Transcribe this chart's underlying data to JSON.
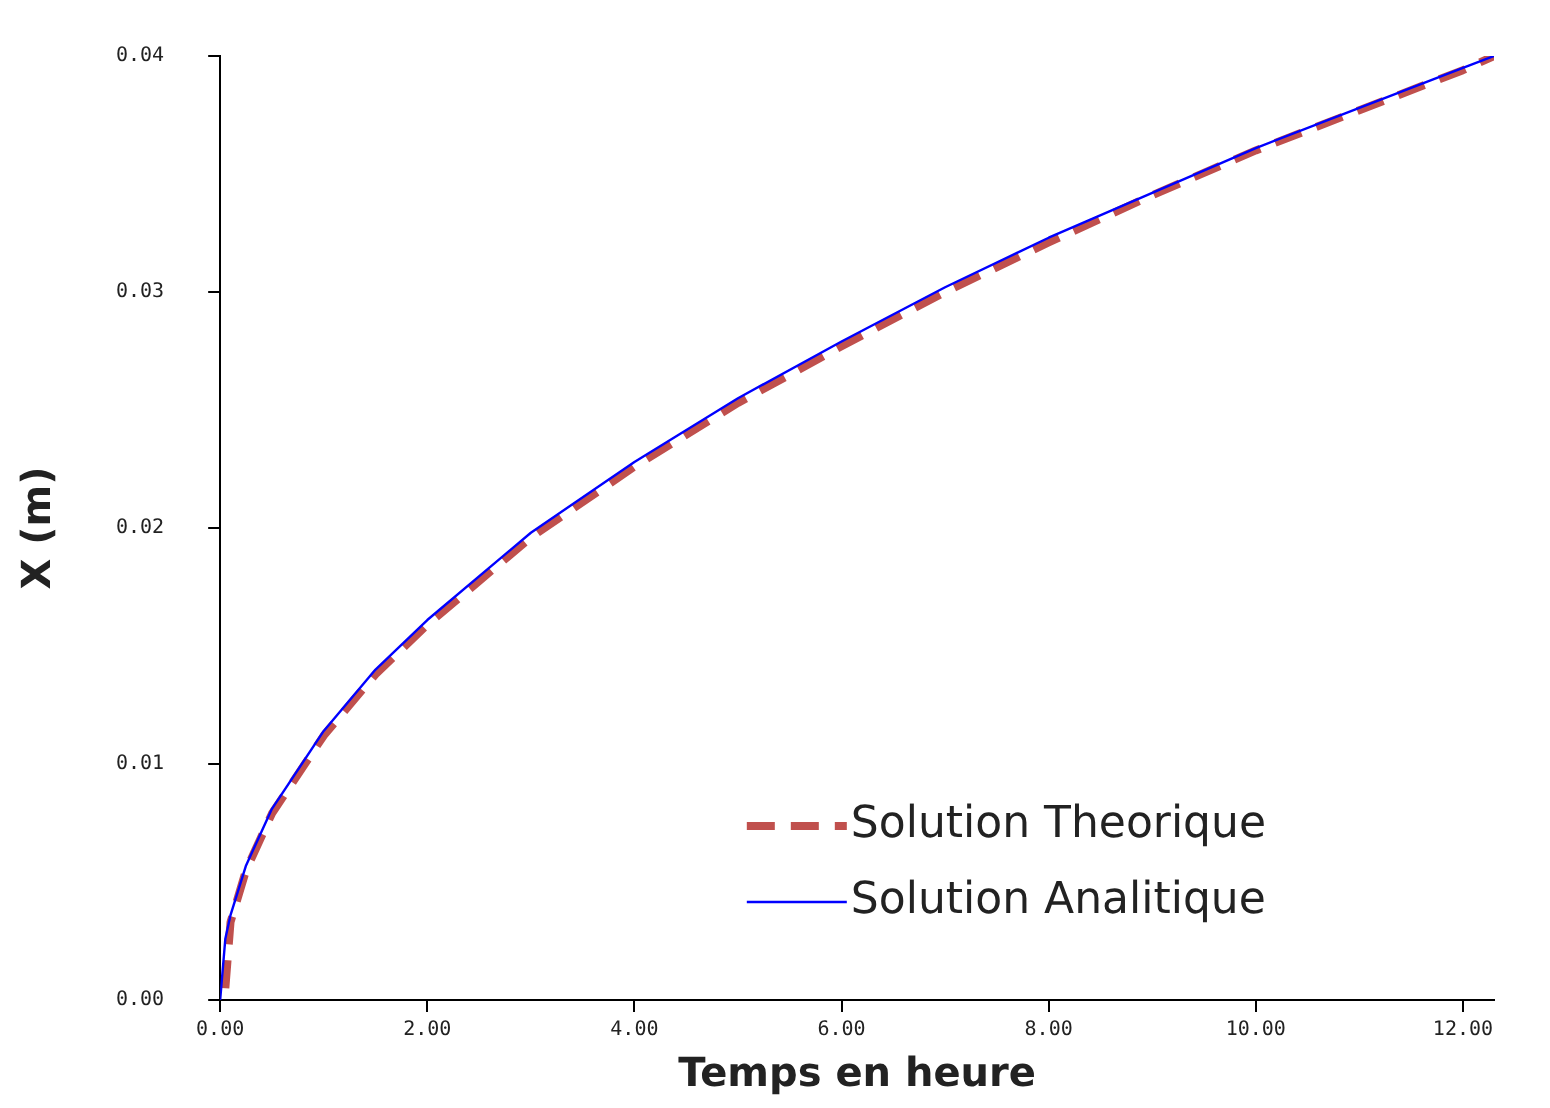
{
  "chart_data": {
    "type": "line",
    "xlabel": "Temps en heure",
    "ylabel": "X (m)",
    "xlim": [
      0,
      12.3
    ],
    "xticks": [
      {
        "value": 0,
        "label": "0.00"
      },
      {
        "value": 2,
        "label": "2.00"
      },
      {
        "value": 4,
        "label": "4.00"
      },
      {
        "value": 6,
        "label": "6.00"
      },
      {
        "value": 8,
        "label": "8.00"
      },
      {
        "value": 10,
        "label": "10.00"
      },
      {
        "value": 12,
        "label": "12.00"
      }
    ],
    "ylim": [
      0,
      0.04
    ],
    "yticks": [
      {
        "value": 0,
        "label": "0.00"
      },
      {
        "value": 0.01,
        "label": "0.01"
      },
      {
        "value": 0.02,
        "label": "0.02"
      },
      {
        "value": 0.03,
        "label": "0.03"
      },
      {
        "value": 0.04,
        "label": "0.04"
      }
    ],
    "grid": false,
    "legend": "bottom right",
    "marker": "none",
    "series": [
      {
        "name": "Solution Theorique",
        "color": "#c0504d",
        "line_style": "dashed",
        "x": [
          0.05,
          0.1,
          0.25,
          0.5,
          1,
          1.5,
          2,
          3,
          4,
          5,
          6,
          7,
          8,
          9,
          10,
          11,
          12,
          12.3
        ],
        "values": [
          0.0005,
          0.0033,
          0.0055,
          0.0079,
          0.0112,
          0.0138,
          0.0159,
          0.0196,
          0.0226,
          0.0253,
          0.0277,
          0.03,
          0.0321,
          0.0341,
          0.036,
          0.0377,
          0.0394,
          0.04
        ]
      },
      {
        "name": "Solution Analitique",
        "color": "#0000ff",
        "line_style": "solid",
        "x": [
          0,
          0.05,
          0.1,
          0.25,
          0.5,
          1,
          1.5,
          2,
          3,
          4,
          5,
          6,
          7,
          8,
          9,
          10,
          11,
          12,
          12.3
        ],
        "values": [
          0,
          0.0026,
          0.0036,
          0.0057,
          0.0081,
          0.0114,
          0.014,
          0.0161,
          0.0198,
          0.0228,
          0.0255,
          0.0279,
          0.0302,
          0.0323,
          0.0342,
          0.0361,
          0.0378,
          0.0395,
          0.04
        ]
      }
    ]
  }
}
